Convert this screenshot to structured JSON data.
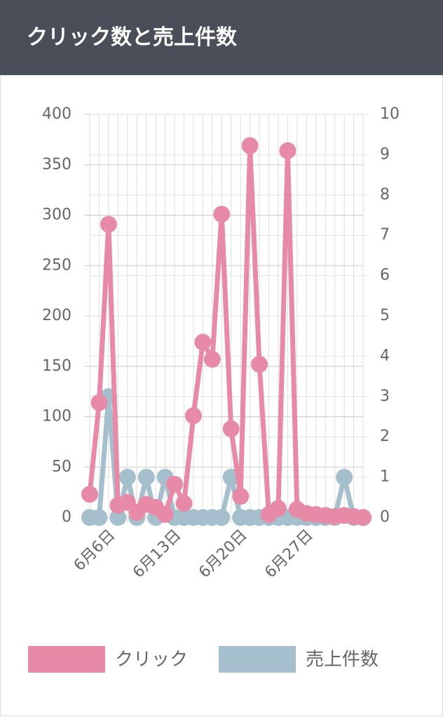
{
  "header": {
    "title": "クリック数と売上件数"
  },
  "chart_data": {
    "type": "line",
    "categories": [
      null,
      null,
      "6月6日",
      null,
      null,
      null,
      null,
      null,
      null,
      "6月13日",
      null,
      null,
      null,
      null,
      null,
      null,
      "6月20日",
      null,
      null,
      null,
      null,
      null,
      null,
      "6月27日",
      null,
      null,
      null,
      null,
      null,
      null
    ],
    "series": [
      {
        "name": "クリック",
        "color": "#e68aa8",
        "values": [
          23,
          114,
          291,
          12,
          15,
          5,
          13,
          10,
          3,
          33,
          14,
          101,
          174,
          157,
          301,
          88,
          21,
          369,
          152,
          3,
          9,
          364,
          8,
          4,
          3,
          2,
          1,
          2,
          1,
          0
        ]
      },
      {
        "name": "売上件数",
        "color": "#a5bfcc",
        "axis": "y2",
        "values": [
          0,
          0,
          3,
          0,
          1,
          0,
          1,
          0,
          1,
          0,
          0,
          0,
          0,
          0,
          0,
          1,
          0,
          0,
          0,
          0,
          0,
          0,
          0,
          0,
          0,
          0,
          0,
          1,
          0,
          0
        ]
      }
    ],
    "ylim": [
      0,
      400
    ],
    "yticks": [
      0,
      50,
      100,
      150,
      200,
      250,
      300,
      350,
      400
    ],
    "y2lim": [
      0,
      10
    ],
    "y2ticks": [
      0,
      1,
      2,
      3,
      4,
      5,
      6,
      7,
      8,
      9,
      10
    ],
    "grid": true,
    "legend": "bottom"
  }
}
